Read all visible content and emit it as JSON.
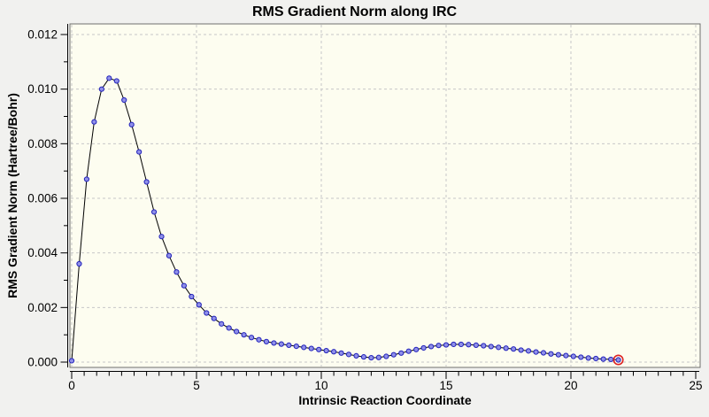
{
  "chart_data": {
    "type": "line",
    "title": "RMS Gradient Norm along IRC",
    "xlabel": "Intrinsic Reaction Coordinate",
    "ylabel": "RMS Gradient Norm (Hartree/Bohr)",
    "xlim": [
      0,
      25
    ],
    "ylim": [
      0,
      0.012
    ],
    "x_major_ticks": [
      0,
      5,
      10,
      15,
      20,
      25
    ],
    "x_minor_step": 0.5,
    "y_major_ticks": [
      0.0,
      0.002,
      0.004,
      0.006,
      0.008,
      0.01,
      0.012
    ],
    "y_minor_step": 0.001,
    "y_tick_decimals": 3,
    "grid": true,
    "legend": "none",
    "marker": "circle",
    "highlighted_index": 73,
    "x": [
      0.0,
      0.3,
      0.6,
      0.9,
      1.2,
      1.5,
      1.8,
      2.1,
      2.4,
      2.7,
      3.0,
      3.3,
      3.6,
      3.9,
      4.2,
      4.5,
      4.8,
      5.1,
      5.4,
      5.7,
      6.0,
      6.3,
      6.6,
      6.9,
      7.2,
      7.5,
      7.8,
      8.1,
      8.4,
      8.7,
      9.0,
      9.3,
      9.6,
      9.9,
      10.2,
      10.5,
      10.8,
      11.1,
      11.4,
      11.7,
      12.0,
      12.3,
      12.6,
      12.9,
      13.2,
      13.5,
      13.8,
      14.1,
      14.4,
      14.7,
      15.0,
      15.3,
      15.6,
      15.9,
      16.2,
      16.5,
      16.8,
      17.1,
      17.4,
      17.7,
      18.0,
      18.3,
      18.6,
      18.9,
      19.2,
      19.5,
      19.8,
      20.1,
      20.4,
      20.7,
      21.0,
      21.3,
      21.6,
      21.9
    ],
    "y": [
      5e-05,
      0.0036,
      0.0067,
      0.0088,
      0.01,
      0.0104,
      0.0103,
      0.0096,
      0.0087,
      0.0077,
      0.0066,
      0.0055,
      0.0046,
      0.0039,
      0.0033,
      0.0028,
      0.0024,
      0.0021,
      0.0018,
      0.0016,
      0.0014,
      0.00125,
      0.00112,
      0.001,
      0.0009,
      0.00082,
      0.00075,
      0.0007,
      0.00066,
      0.00062,
      0.00058,
      0.00054,
      0.0005,
      0.00046,
      0.00042,
      0.00038,
      0.00033,
      0.00028,
      0.00023,
      0.00019,
      0.00016,
      0.00017,
      0.00021,
      0.00027,
      0.00033,
      0.0004,
      0.00046,
      0.00052,
      0.00057,
      0.00061,
      0.00063,
      0.00065,
      0.00065,
      0.00064,
      0.00062,
      0.0006,
      0.00057,
      0.00054,
      0.00051,
      0.00048,
      0.00044,
      0.00041,
      0.00037,
      0.00034,
      0.0003,
      0.00027,
      0.00024,
      0.00021,
      0.00018,
      0.00015,
      0.00013,
      0.00011,
      0.0001,
      8e-05
    ],
    "colors": {
      "background": "#f1f1ef",
      "canvas_bg": "#fdfdf0",
      "grid": "#c8c8c8",
      "frame": "#6e6e6e",
      "line": "#000000",
      "marker_fill": "#9090e8",
      "marker_stroke": "#2222bb",
      "highlight": "#dd2222",
      "text": "#000000"
    }
  }
}
